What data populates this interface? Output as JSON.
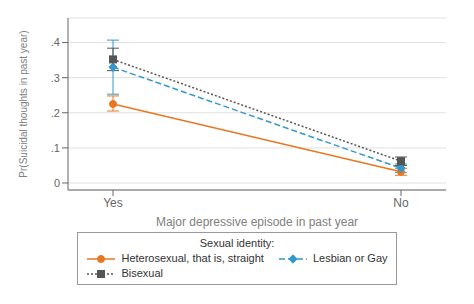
{
  "chart_data": {
    "type": "line",
    "categories": [
      "Yes",
      "No"
    ],
    "xlabel": "Major depressive episode in past year",
    "ylabel": "Pr(Suicidal thoughts in past year)",
    "ylim": [
      -0.02,
      0.47
    ],
    "yticks": [
      0,
      {
        "value": 0.1,
        "label": ".1"
      },
      {
        "value": 0.2,
        "label": ".2"
      },
      {
        "value": 0.3,
        "label": ".3"
      },
      {
        "value": 0.4,
        "label": ".4"
      }
    ],
    "grid": true,
    "legend": "bottom",
    "legend_title": "Sexual identity:",
    "series": [
      {
        "name": "Heterosexual, that is, straight",
        "color": "#E87722",
        "line_style": "solid",
        "marker": "circle",
        "values": [
          0.225,
          0.032
        ],
        "error_low": [
          0.205,
          0.022
        ],
        "error_high": [
          0.248,
          0.042
        ]
      },
      {
        "name": "Lesbian or Gay",
        "color": "#3399CC",
        "line_style": "dashed",
        "marker": "diamond",
        "values": [
          0.33,
          0.042
        ],
        "error_low": [
          0.253,
          0.03
        ],
        "error_high": [
          0.407,
          0.054
        ]
      },
      {
        "name": "Bisexual",
        "color": "#555555",
        "line_style": "dotted",
        "marker": "square",
        "values": [
          0.352,
          0.062
        ],
        "error_low": [
          0.32,
          0.05
        ],
        "error_high": [
          0.384,
          0.074
        ]
      }
    ]
  }
}
